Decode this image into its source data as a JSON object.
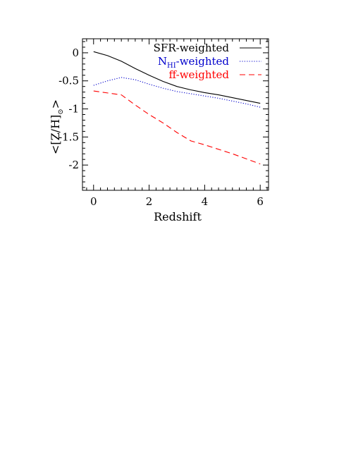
{
  "chart_data": {
    "type": "line",
    "xlabel": "Redshift",
    "ylabel_prefix": "<[Z/H]",
    "ylabel_sub": "⊙",
    "ylabel_suffix": ">",
    "xlim": [
      -0.4,
      6.3
    ],
    "ylim": [
      -2.45,
      0.25
    ],
    "xticks": [
      0,
      2,
      4,
      6
    ],
    "xtick_labels": [
      "0",
      "2",
      "4",
      "6"
    ],
    "yticks": [
      0,
      -0.5,
      -1,
      -1.5,
      -2
    ],
    "ytick_labels": [
      "0",
      "-0.5",
      "-1",
      "-1.5",
      "-2"
    ],
    "grid": false,
    "legend_position": "top-right",
    "series": [
      {
        "name": "SFR-weighted",
        "color": "#000000",
        "style": "solid",
        "x": [
          0,
          0.5,
          1,
          1.5,
          2,
          2.5,
          3,
          3.5,
          4,
          4.5,
          5,
          5.5,
          6
        ],
        "y": [
          0.02,
          -0.05,
          -0.15,
          -0.28,
          -0.4,
          -0.51,
          -0.6,
          -0.66,
          -0.71,
          -0.75,
          -0.8,
          -0.85,
          -0.9
        ]
      },
      {
        "name_main": "N",
        "name_sub": "HI",
        "name_tail": "-weighted",
        "color": "#0000cc",
        "style": "dotted",
        "x": [
          0,
          0.5,
          1,
          1.5,
          2,
          2.5,
          3,
          3.5,
          4,
          4.5,
          5,
          5.5,
          6
        ],
        "y": [
          -0.58,
          -0.5,
          -0.44,
          -0.48,
          -0.56,
          -0.63,
          -0.69,
          -0.73,
          -0.77,
          -0.81,
          -0.86,
          -0.91,
          -0.97
        ]
      },
      {
        "name": "ff-weighted",
        "color": "#ff0000",
        "style": "dashed",
        "x": [
          0,
          1,
          1.5,
          2,
          2.5,
          3,
          3.5,
          4,
          5,
          6
        ],
        "y": [
          -0.68,
          -0.75,
          -0.93,
          -1.1,
          -1.25,
          -1.42,
          -1.57,
          -1.64,
          -1.8,
          -1.98
        ]
      }
    ]
  }
}
